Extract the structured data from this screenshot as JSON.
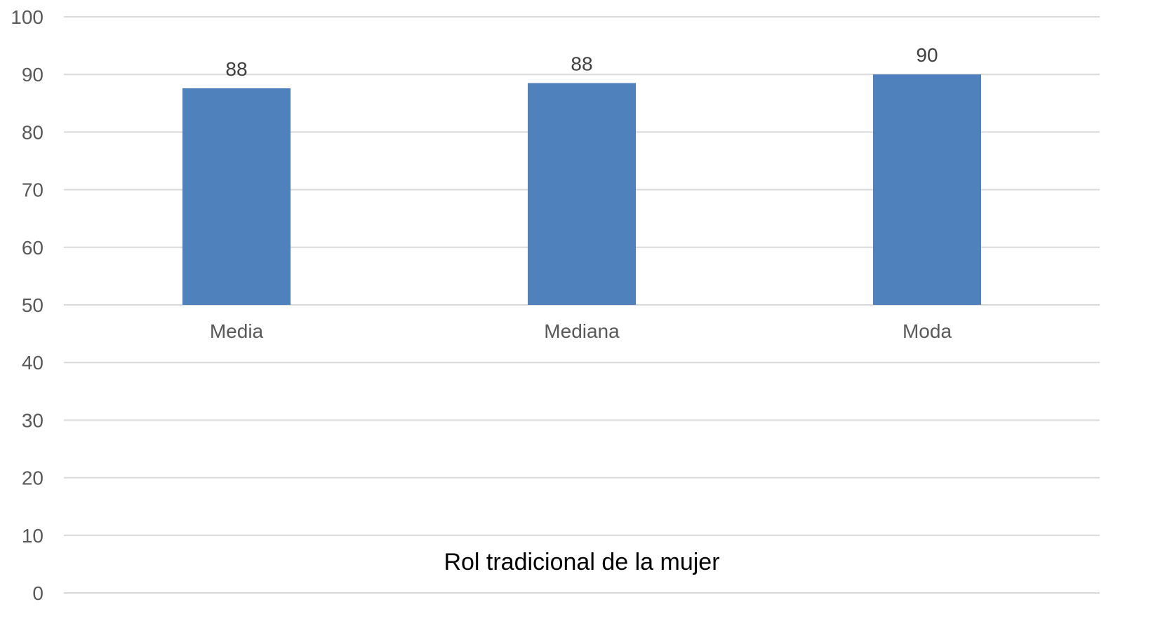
{
  "chart_data": {
    "type": "bar",
    "title": "",
    "xlabel": "Rol tradicional de la mujer",
    "ylabel": "",
    "categories": [
      "Media",
      "Mediana",
      "Moda"
    ],
    "series": [
      {
        "values": [
          87.6,
          88.5,
          90
        ],
        "data_labels": [
          "88",
          "88",
          "90"
        ],
        "color": "#4f81bd"
      }
    ],
    "ylim": [
      0,
      100
    ],
    "yticks": [
      "0",
      "10",
      "20",
      "30",
      "40",
      "50",
      "60",
      "70",
      "80",
      "90",
      "100"
    ],
    "grid": true,
    "legend": "none",
    "category_axis_at": 50
  }
}
